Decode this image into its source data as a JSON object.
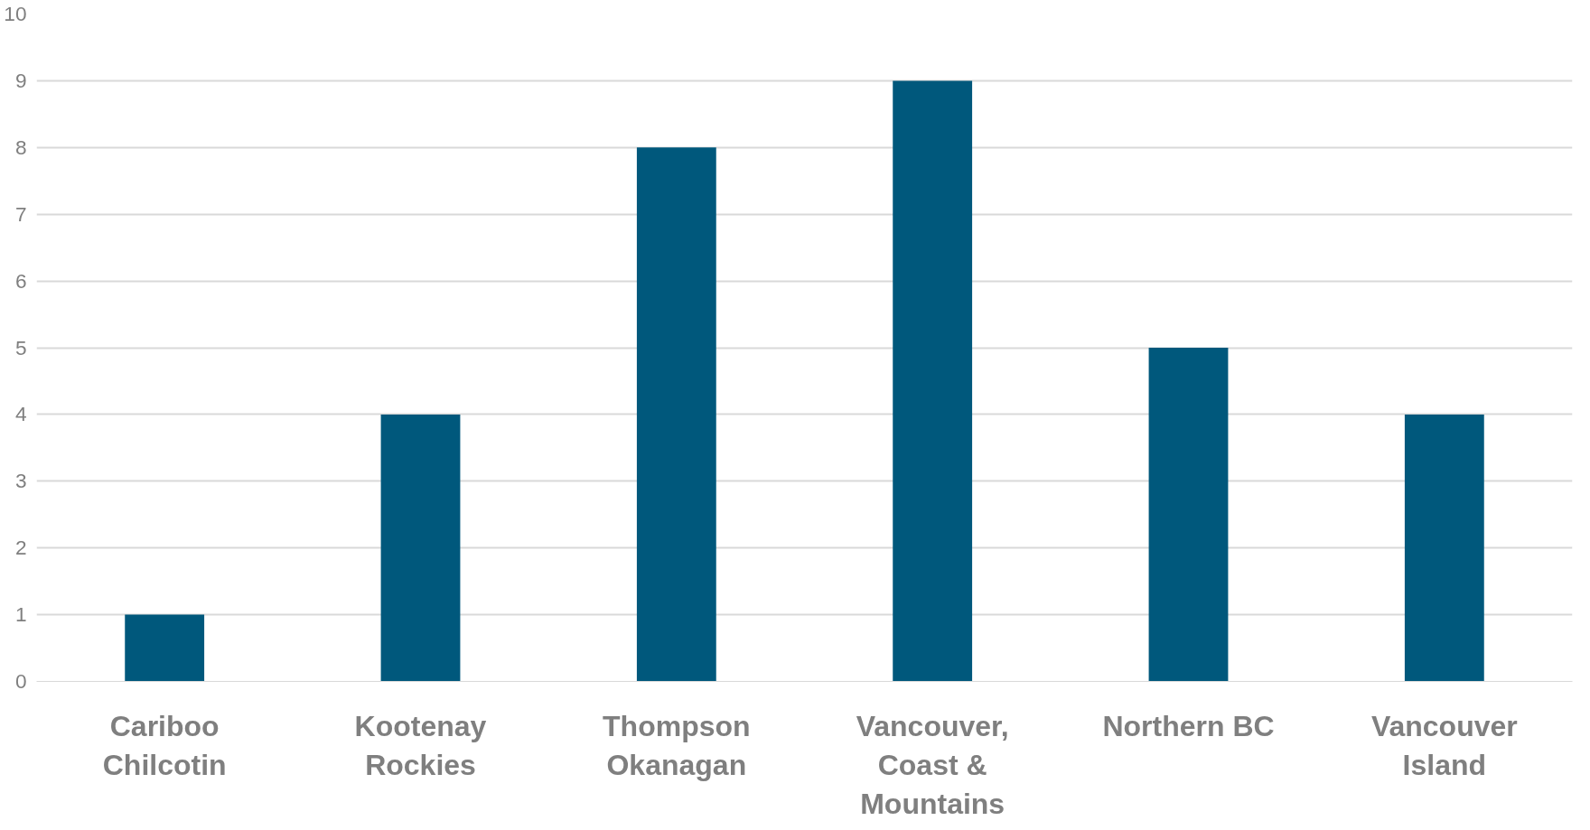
{
  "chart_data": {
    "type": "bar",
    "categories": [
      "Cariboo\nChilcotin",
      "Kootenay\nRockies",
      "Thompson\nOkanagan",
      "Vancouver,\nCoast &\nMountains",
      "Northern BC",
      "Vancouver\nIsland"
    ],
    "values": [
      1,
      4,
      8,
      9,
      5,
      4
    ],
    "color": "#00587c",
    "ylim": [
      0,
      10
    ],
    "yticks": [
      0,
      1,
      2,
      3,
      4,
      5,
      6,
      7,
      8,
      9,
      10
    ],
    "grid": "y"
  }
}
